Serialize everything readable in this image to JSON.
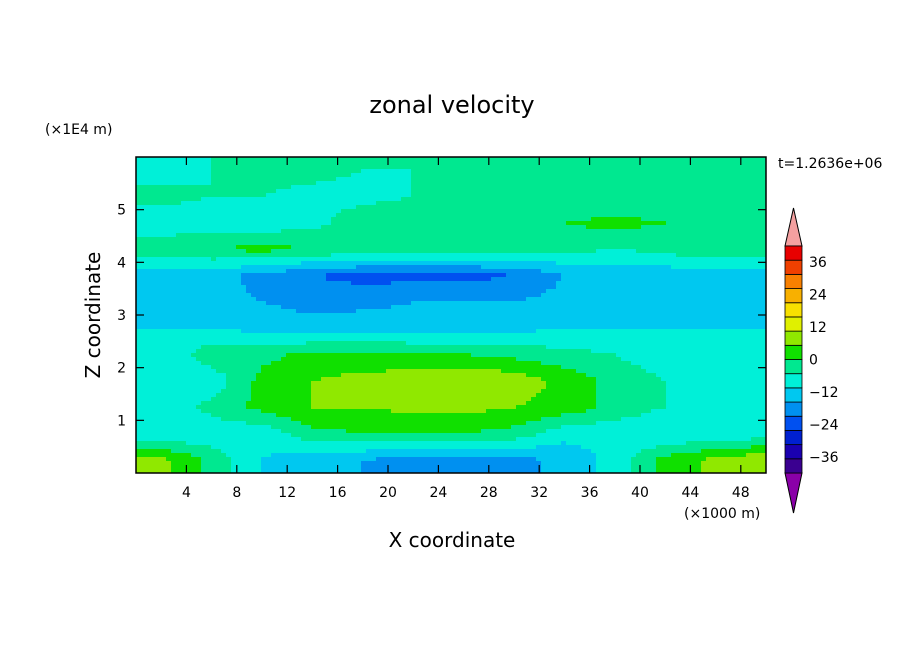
{
  "chart_data": {
    "type": "heatmap",
    "title": "zonal velocity",
    "xlabel": "X coordinate",
    "ylabel": "Z coordinate",
    "x_unit": "(×1000 m)",
    "y_unit": "(×1E4 m)",
    "time_label": "t=1.2636e+06",
    "xlim": [
      0,
      50
    ],
    "ylim": [
      0,
      6
    ],
    "x_ticks": [
      "4",
      "8",
      "12",
      "16",
      "20",
      "24",
      "28",
      "32",
      "36",
      "40",
      "44",
      "48"
    ],
    "y_ticks": [
      "1",
      "2",
      "3",
      "4",
      "5"
    ],
    "colorbar": {
      "levels": [
        -42,
        -36,
        -30,
        -24,
        -18,
        -12,
        -6,
        0,
        6,
        12,
        18,
        24,
        30,
        36,
        42
      ],
      "tick_labels": [
        "36",
        "24",
        "12",
        "0",
        "−12",
        "−24",
        "−36"
      ],
      "colors": [
        "#8a00a8",
        "#3a0090",
        "#1a00b0",
        "#0020d0",
        "#0050f0",
        "#0090f0",
        "#00c8f0",
        "#00f0d8",
        "#00e890",
        "#10e000",
        "#90e800",
        "#e0f000",
        "#f8e000",
        "#f8b000",
        "#f88000",
        "#f04000",
        "#e80000",
        "#f4a0a0"
      ]
    },
    "grid": false,
    "values_z": [
      0.25,
      0.75,
      1.25,
      1.75,
      2.25,
      2.75,
      3.25,
      3.75,
      4.25,
      4.75,
      5.25,
      5.75
    ],
    "values_x": [
      2,
      6,
      10,
      14,
      18,
      22,
      26,
      30,
      34,
      38,
      42,
      46,
      49
    ],
    "values": [
      [
        14,
        4,
        -6,
        -10,
        -12,
        -14,
        -16,
        -14,
        -10,
        -4,
        8,
        14,
        16
      ],
      [
        -6,
        -4,
        -4,
        4,
        6,
        6,
        6,
        4,
        -4,
        -4,
        -6,
        -6,
        -4
      ],
      [
        -4,
        2,
        8,
        12,
        12,
        14,
        14,
        12,
        10,
        4,
        0,
        -6,
        -6
      ],
      [
        -6,
        -4,
        8,
        12,
        14,
        16,
        18,
        16,
        10,
        4,
        0,
        -4,
        -6
      ],
      [
        -6,
        4,
        4,
        8,
        8,
        6,
        6,
        4,
        2,
        0,
        -4,
        -6,
        -6
      ],
      [
        -6,
        -6,
        -8,
        -10,
        -8,
        -8,
        -8,
        -8,
        -6,
        -6,
        -6,
        -6,
        -6
      ],
      [
        -10,
        -10,
        -12,
        -14,
        -14,
        -12,
        -12,
        -12,
        -10,
        -10,
        -10,
        -10,
        -10
      ],
      [
        -10,
        -10,
        -14,
        -18,
        -20,
        -20,
        -20,
        -18,
        -12,
        -10,
        -10,
        -10,
        -10
      ],
      [
        4,
        6,
        8,
        6,
        4,
        4,
        4,
        2,
        2,
        0,
        2,
        6,
        4
      ],
      [
        -4,
        -4,
        -4,
        -2,
        4,
        6,
        2,
        4,
        6,
        8,
        6,
        4,
        2
      ],
      [
        2,
        0,
        0,
        -2,
        -2,
        0,
        0,
        0,
        0,
        0,
        0,
        0,
        0
      ],
      [
        -2,
        0,
        2,
        2,
        0,
        0,
        0,
        0,
        0,
        0,
        2,
        2,
        0
      ]
    ]
  }
}
